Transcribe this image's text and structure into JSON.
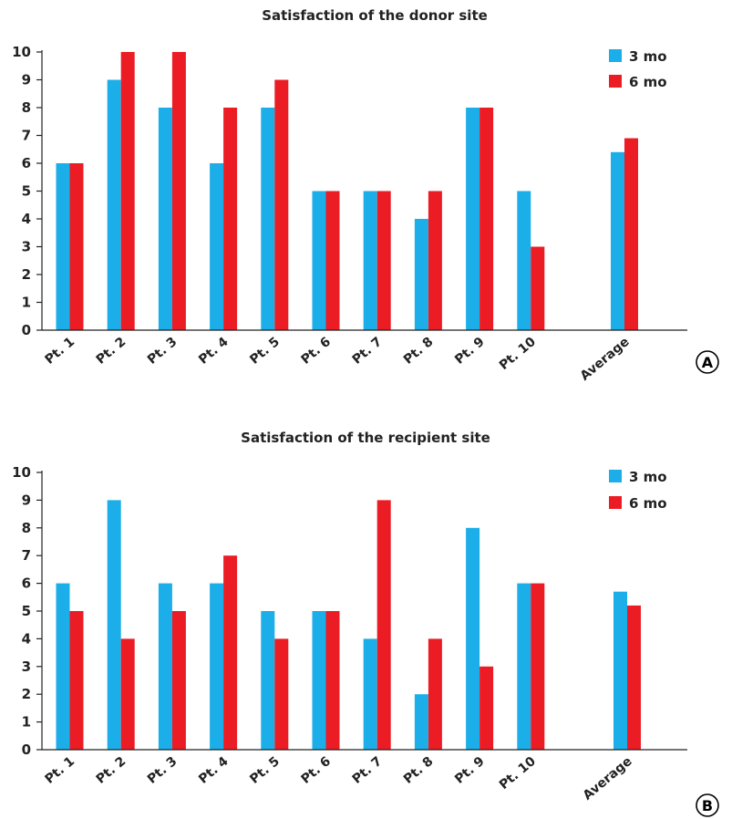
{
  "colors": {
    "series_3mo": "#1BAEE8",
    "series_6mo": "#EC1C24",
    "axis": "#222222"
  },
  "chart_data": [
    {
      "type": "bar",
      "panel_label": "A",
      "title": "Satisfaction of the donor site",
      "categories": [
        "Pt. 1",
        "Pt. 2",
        "Pt. 3",
        "Pt. 4",
        "Pt. 5",
        "Pt. 6",
        "Pt. 7",
        "Pt. 8",
        "Pt. 9",
        "Pt. 10",
        "Average"
      ],
      "series": [
        {
          "name": "3 mo",
          "values": [
            6,
            9,
            8,
            6,
            8,
            5,
            5,
            4,
            8,
            5,
            6.4
          ]
        },
        {
          "name": "6 mo",
          "values": [
            6,
            10,
            10,
            8,
            9,
            5,
            5,
            5,
            8,
            3,
            6.9
          ]
        }
      ],
      "ylim": [
        0,
        10
      ],
      "yticks": [
        0,
        1,
        2,
        3,
        4,
        5,
        6,
        7,
        8,
        9,
        10
      ],
      "legend": "top-right",
      "grid": false
    },
    {
      "type": "bar",
      "panel_label": "B",
      "title": "Satisfaction of the recipient site",
      "categories": [
        "Pt. 1",
        "Pt. 2",
        "Pt. 3",
        "Pt. 4",
        "Pt. 5",
        "Pt. 6",
        "Pt. 7",
        "Pt. 8",
        "Pt. 9",
        "Pt. 10",
        "Average"
      ],
      "series": [
        {
          "name": "3 mo",
          "values": [
            6,
            9,
            6,
            6,
            5,
            5,
            4,
            2,
            8,
            6,
            5.7
          ]
        },
        {
          "name": "6 mo",
          "values": [
            5,
            4,
            5,
            7,
            4,
            5,
            9,
            4,
            3,
            6,
            5.2
          ]
        }
      ],
      "ylim": [
        0,
        10
      ],
      "yticks": [
        0,
        1,
        2,
        3,
        4,
        5,
        6,
        7,
        8,
        9,
        10
      ],
      "legend": "top-right",
      "grid": false
    }
  ]
}
